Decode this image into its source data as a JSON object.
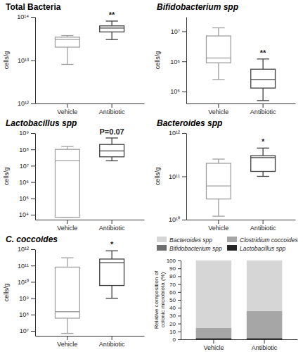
{
  "chart_data": [
    {
      "type": "box",
      "title": "Total Bacteria",
      "y_label": "cells/g",
      "categories": [
        "Vehicle",
        "Antibiotic"
      ],
      "boxes": [
        {
          "min": 8000000000000.0,
          "q1": 20000000000000.0,
          "median": 30000000000000.0,
          "q3": 34000000000000.0,
          "max": 37000000000000.0
        },
        {
          "min": 30000000000000.0,
          "q1": 45000000000000.0,
          "median": 55000000000000.0,
          "q3": 62000000000000.0,
          "max": 80000000000000.0
        }
      ],
      "colors": [
        "#a0a0a0",
        "#404040"
      ],
      "annotation": "**",
      "log": "y",
      "ylim": [
        1000000000000.0,
        100000000000000.0
      ],
      "yticks": [
        {
          "value": 1000000000000.0,
          "label": "10¹²"
        },
        {
          "value": 10000000000000.0,
          "label": "10¹³"
        },
        {
          "value": 100000000000000.0,
          "label": "10¹⁴"
        }
      ]
    },
    {
      "type": "box",
      "title": "Bifidobacterium spp",
      "y_label": "cells/g",
      "categories": [
        "Vehicle",
        "Antibiotic"
      ],
      "boxes": [
        {
          "min": 250000.0,
          "q1": 900000.0,
          "median": 1300000.0,
          "q3": 7000000.0,
          "max": 13000000.0
        },
        {
          "min": 50000.0,
          "q1": 130000.0,
          "median": 250000.0,
          "q3": 550000.0,
          "max": 1200000.0
        }
      ],
      "colors": [
        "#a0a0a0",
        "#404040"
      ],
      "annotation": "**",
      "log": "y",
      "ylim": [
        40000.0,
        30000000.0
      ],
      "yticks": [
        {
          "value": 100000.0,
          "label": "10⁵"
        },
        {
          "value": 1000000.0,
          "label": "10⁶"
        },
        {
          "value": 10000000.0,
          "label": "10⁷"
        }
      ]
    },
    {
      "type": "box",
      "title": "Lactobacillus spp",
      "y_label": "cells/g",
      "categories": [
        "Vehicle",
        "Antibiotic"
      ],
      "boxes": [
        {
          "min": 7000.0,
          "q1": 7000.0,
          "median": 20000000.0,
          "q3": 100000000.0,
          "max": 150000000.0
        },
        {
          "min": 20000000.0,
          "q1": 35000000.0,
          "median": 80000000.0,
          "q3": 200000000.0,
          "max": 500000000.0
        }
      ],
      "colors": [
        "#a0a0a0",
        "#404040"
      ],
      "annotation": "P=0.07",
      "log": "y",
      "ylim": [
        5000.0,
        1000000000.0
      ],
      "yticks": [
        {
          "value": 10000.0,
          "label": "10⁴"
        },
        {
          "value": 100000.0,
          "label": "10⁵"
        },
        {
          "value": 1000000.0,
          "label": "10⁶"
        },
        {
          "value": 10000000.0,
          "label": "10⁷"
        },
        {
          "value": 100000000.0,
          "label": "10⁸"
        },
        {
          "value": 1000000000.0,
          "label": "10⁹"
        }
      ]
    },
    {
      "type": "box",
      "title": "Bacteroides spp",
      "y_label": "cells/g",
      "categories": [
        "Vehicle",
        "Antibiotic"
      ],
      "boxes": [
        {
          "min": 12000000000.0,
          "q1": 30000000000.0,
          "median": 60000000000.0,
          "q3": 200000000000.0,
          "max": 250000000000.0
        },
        {
          "min": 100000000000.0,
          "q1": 130000000000.0,
          "median": 270000000000.0,
          "q3": 300000000000.0,
          "max": 450000000000.0
        }
      ],
      "colors": [
        "#a0a0a0",
        "#404040"
      ],
      "annotation": "*",
      "log": "y",
      "ylim": [
        10000000000.0,
        1000000000000.0
      ],
      "yticks": [
        {
          "value": 10000000000.0,
          "label": "10¹⁰"
        },
        {
          "value": 100000000000.0,
          "label": "10¹¹"
        },
        {
          "value": 1000000000000.0,
          "label": "10¹²"
        }
      ]
    },
    {
      "type": "box",
      "title": "C. coccoides",
      "y_label": "cells/g",
      "categories": [
        "Vehicle",
        "Antibiotic"
      ],
      "boxes": [
        {
          "min": 7000000.0,
          "q1": 60000000.0,
          "median": 150000000.0,
          "q3": 80000000000.0,
          "max": 300000000000.0
        },
        {
          "min": 1000000000.0,
          "q1": 6000000000.0,
          "median": 150000000000.0,
          "q3": 250000000000.0,
          "max": 800000000000.0
        }
      ],
      "colors": [
        "#a0a0a0",
        "#404040"
      ],
      "annotation": "*",
      "log": "y",
      "ylim": [
        5000000.0,
        1000000000000.0
      ],
      "yticks": [
        {
          "value": 10000000.0,
          "label": "10⁷"
        },
        {
          "value": 100000000.0,
          "label": "10⁸"
        },
        {
          "value": 1000000000.0,
          "label": "10⁹"
        },
        {
          "value": 10000000000.0,
          "label": "10¹⁰"
        },
        {
          "value": 100000000000.0,
          "label": "10¹¹"
        },
        {
          "value": 1000000000000.0,
          "label": "10¹²"
        }
      ]
    },
    {
      "type": "bar",
      "stacked": true,
      "legend": "top",
      "y_label": "Relative composition of colonic microbiota (%)",
      "categories": [
        "Vehicle",
        "Antibiotic"
      ],
      "series": [
        {
          "name": "Lactobacillus spp",
          "color": "#262626",
          "values": [
            1.5,
            1.5
          ]
        },
        {
          "name": "Clostridium coccoides",
          "color": "#a6a6a6",
          "values": [
            12,
            34
          ]
        },
        {
          "name": "Bifidobacterium spp",
          "color": "#6e6e6e",
          "values": [
            0.6,
            0.3
          ]
        },
        {
          "name": "Bacteroides spp",
          "color": "#d6d6d6",
          "values": [
            85.9,
            64.2
          ]
        }
      ],
      "ylim": [
        0,
        100
      ],
      "yticks": [
        0,
        10,
        20,
        30,
        40,
        50,
        60,
        70,
        80,
        90,
        100
      ]
    }
  ]
}
